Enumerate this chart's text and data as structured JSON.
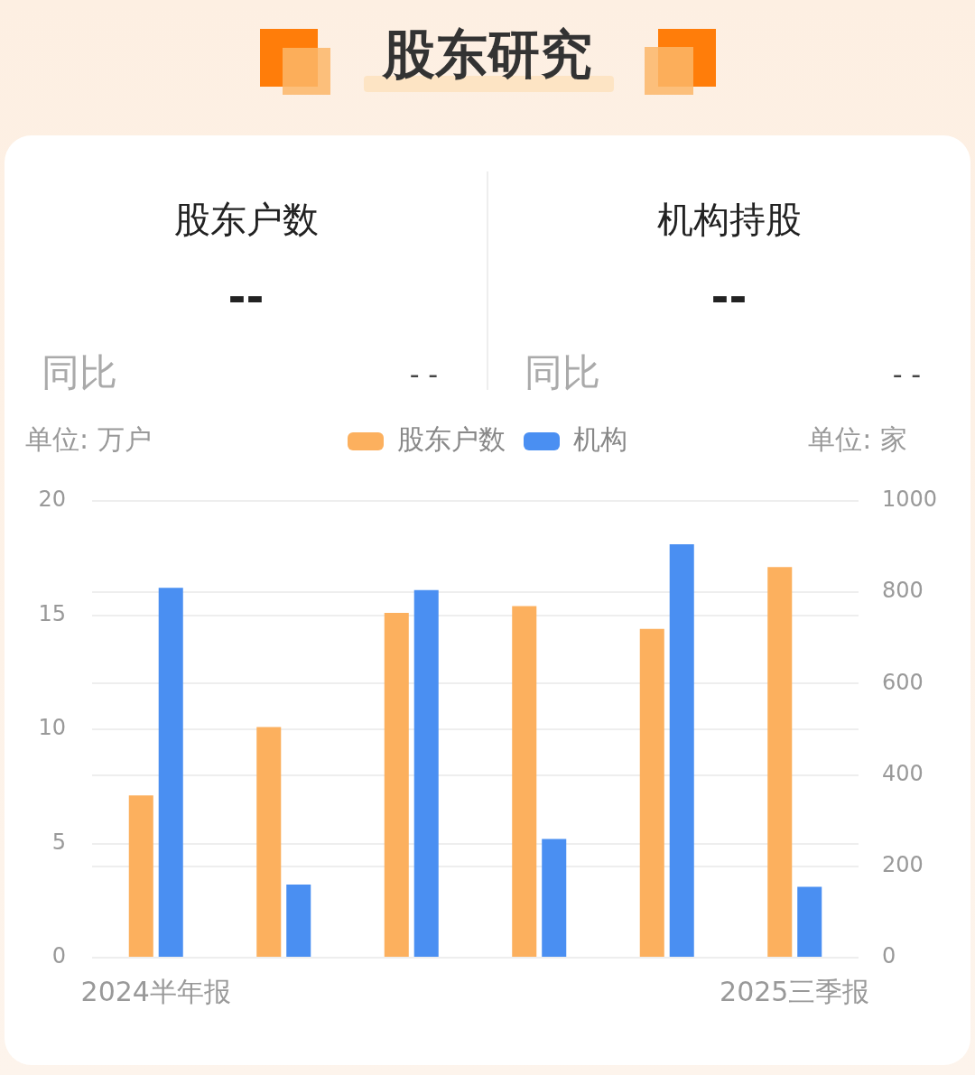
{
  "chart_data": [
    {
      "type": "other",
      "title": "股东研究",
      "annotations": [
        "股东户数",
        "--",
        "同比",
        "- -",
        "机构持股",
        "--",
        "同比",
        "- -"
      ]
    },
    {
      "type": "bar",
      "categories": [
        "2024半年报",
        null,
        null,
        null,
        null,
        "2025三季报"
      ],
      "ylabel": "单位: 万户",
      "y2label": "单位: 家",
      "series": [
        {
          "name": "股东户数",
          "color": "#fcb05e",
          "values": [
            7.1,
            10.1,
            15.1,
            15.4,
            14.4,
            17.1
          ]
        },
        {
          "name": "机构",
          "color": "#4a8ff2",
          "axis": "y2",
          "values": [
            810,
            160,
            805,
            260,
            905,
            155
          ]
        }
      ],
      "ylim": [
        0,
        20
      ],
      "yticks": [
        0,
        5,
        10,
        15,
        20
      ],
      "y2lim": [
        0,
        1000
      ],
      "y2ticks": [
        0,
        200,
        400,
        600,
        800,
        1000
      ],
      "grid": "y",
      "legend": "top"
    }
  ]
}
